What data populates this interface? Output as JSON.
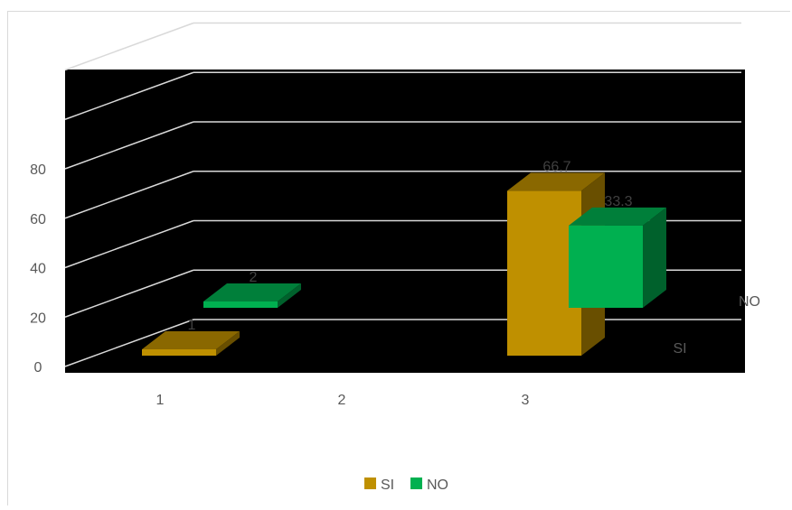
{
  "chart_data": {
    "type": "bar",
    "style": "3d-column",
    "categories": [
      "1",
      "2",
      "3"
    ],
    "series": [
      {
        "name": "SI",
        "values": [
          1,
          null,
          66.7
        ],
        "labels": [
          "1",
          "",
          "66.7"
        ],
        "color": "#bf9000"
      },
      {
        "name": "NO",
        "values": [
          2,
          null,
          33.3
        ],
        "labels": [
          "2",
          "",
          "33.3"
        ],
        "color": "#00b050"
      }
    ],
    "y_ticks": [
      "0",
      "20",
      "40",
      "60",
      "80"
    ],
    "ylim": [
      0,
      120
    ],
    "depth_axis_labels": [
      "SI",
      "NO"
    ],
    "legend_position": "bottom",
    "plot_background": "#000000",
    "grid": true
  }
}
